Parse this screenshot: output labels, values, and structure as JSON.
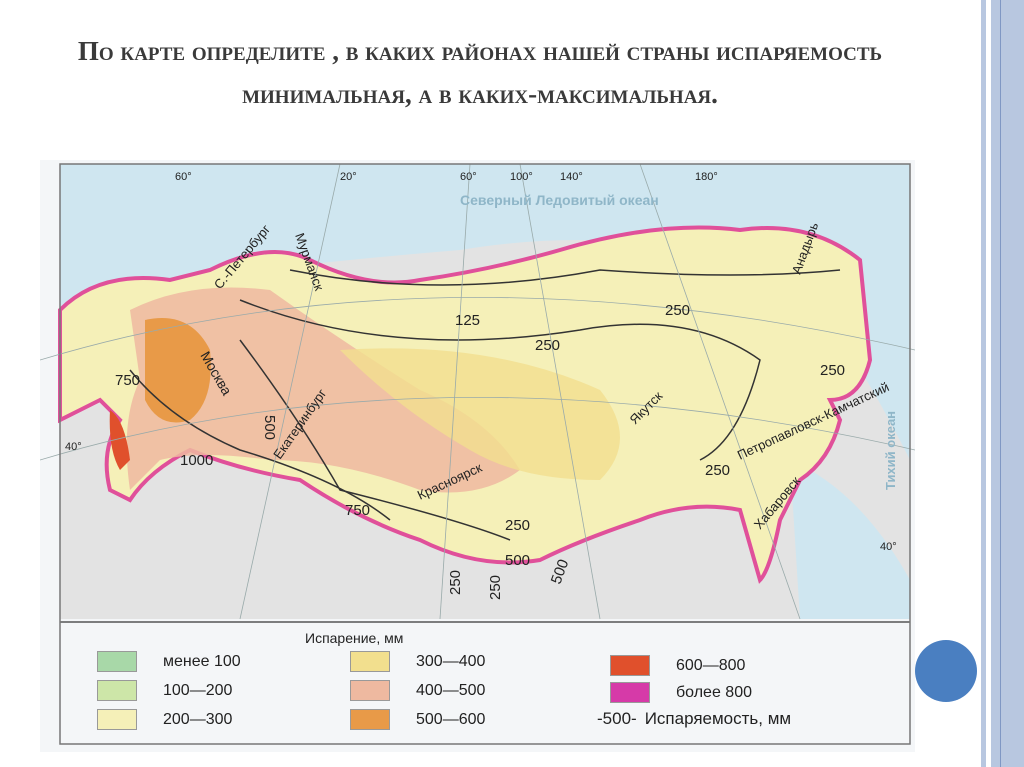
{
  "slide": {
    "title": "По карте определите , в каких районах нашей страны испаряемость минимальная, а в каких-максимальная."
  },
  "map": {
    "ocean_label": "Северный Ледовитый океан",
    "ocean_label_2": "Тихий океан",
    "meridians": [
      "20°",
      "60°",
      "100°",
      "140°",
      "180°"
    ],
    "parallels": [
      "60°",
      "40°",
      "40°"
    ],
    "cities": [
      "Мурманск",
      "С.-Петербург",
      "Москва",
      "Екатеринбург",
      "Красноярск",
      "Якутск",
      "Петропавловск-Камчатский",
      "Хабаровск",
      "Анадырь"
    ],
    "isolines": [
      "125",
      "250",
      "250",
      "250",
      "250",
      "250",
      "500",
      "500",
      "500",
      "750",
      "750",
      "1000",
      "250",
      "250"
    ],
    "colors": {
      "sea": "#cfe6f0",
      "land_outside": "#e6e6e6",
      "border": "#e0509a"
    }
  },
  "legend": {
    "title": "Испарение, мм",
    "items": [
      {
        "label": "менее 100",
        "color": "#a8d8a8"
      },
      {
        "label": "100—200",
        "color": "#cde6a8"
      },
      {
        "label": "200—300",
        "color": "#f5f0b8"
      },
      {
        "label": "300—400",
        "color": "#f2df8e"
      },
      {
        "label": "400—500",
        "color": "#eeb9a0"
      },
      {
        "label": "500—600",
        "color": "#e89a48"
      },
      {
        "label": "600—800",
        "color": "#e0502c"
      },
      {
        "label": "более 800",
        "color": "#d63aa8"
      }
    ],
    "isoline_symbol": "-500-",
    "isoline_label": "Испаряемость, мм"
  },
  "theme": {
    "accent": "#4a7fc1",
    "stripe": "#b8c7e0"
  }
}
